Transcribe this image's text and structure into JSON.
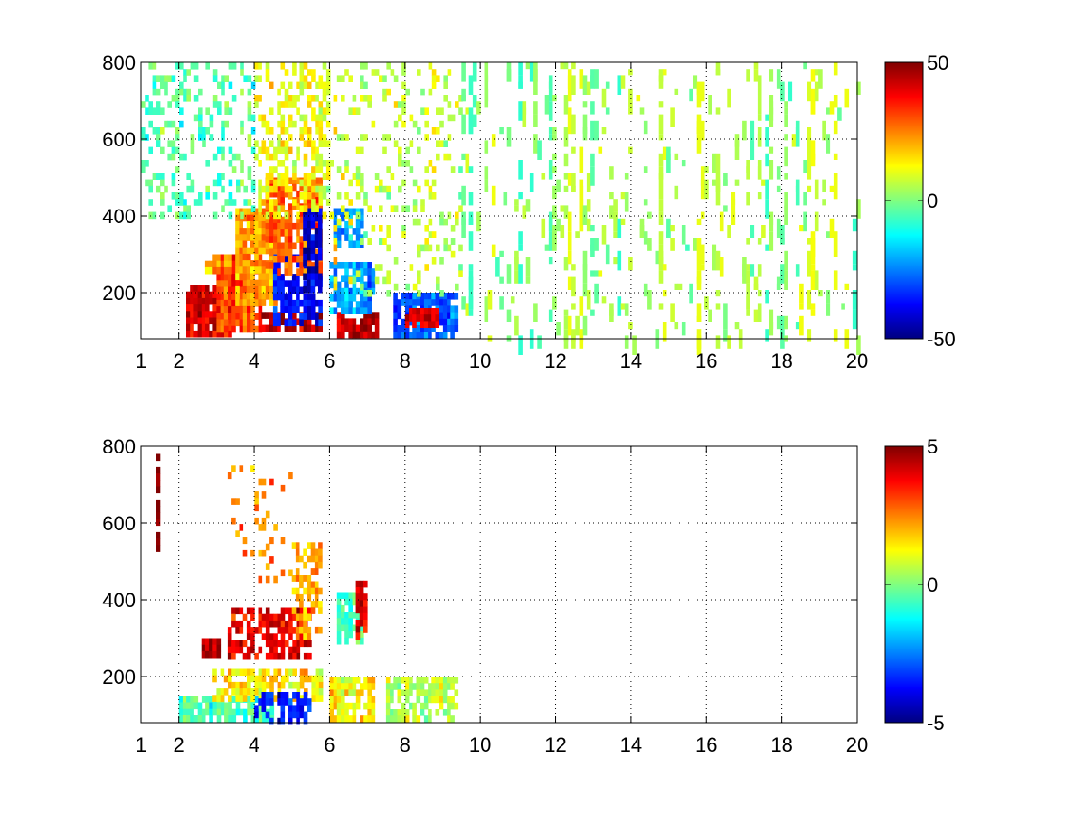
{
  "chart_data": [
    {
      "type": "heatmap",
      "title": "",
      "xlabel": "",
      "ylabel": "",
      "xlim": [
        1,
        20
      ],
      "ylim": [
        80,
        800
      ],
      "x_ticks": [
        1,
        2,
        4,
        6,
        8,
        10,
        12,
        14,
        16,
        18,
        20
      ],
      "x_tick_labels": [
        "1",
        "2",
        "4",
        "6",
        "8",
        "10",
        "12",
        "14",
        "16",
        "18",
        "20"
      ],
      "y_ticks": [
        200,
        400,
        600,
        800
      ],
      "y_tick_labels": [
        "200",
        "400",
        "600",
        "800"
      ],
      "x_grid": [
        2,
        4,
        6,
        8,
        10,
        12,
        14,
        16,
        18,
        20
      ],
      "y_grid": [
        200,
        400,
        600,
        800
      ],
      "grid": true,
      "colormap": "jet",
      "clim": [
        -50,
        50
      ],
      "colorbar_labels": [
        "50",
        "0",
        "-50"
      ],
      "colorbar_values": [
        50,
        0,
        -50
      ],
      "colorbar_placement": "right",
      "blobs": [
        {
          "x": [
            2.2,
            3.4
          ],
          "y": [
            100,
            220
          ],
          "v": 40,
          "density": 0.92
        },
        {
          "x": [
            3.0,
            4.2
          ],
          "y": [
            100,
            300
          ],
          "v": 32,
          "density": 0.92
        },
        {
          "x": [
            3.5,
            4.6
          ],
          "y": [
            180,
            420
          ],
          "v": 22,
          "density": 0.88
        },
        {
          "x": [
            4.2,
            5.8
          ],
          "y": [
            100,
            150
          ],
          "v": 45,
          "density": 0.92
        },
        {
          "x": [
            4.5,
            5.8
          ],
          "y": [
            120,
            300
          ],
          "v": -38,
          "density": 0.72
        },
        {
          "x": [
            4.3,
            5.8
          ],
          "y": [
            250,
            500
          ],
          "v": 28,
          "density": 0.82
        },
        {
          "x": [
            5.3,
            5.8
          ],
          "y": [
            200,
            420
          ],
          "v": -42,
          "density": 0.85
        },
        {
          "x": [
            4.0,
            6.0
          ],
          "y": [
            400,
            800
          ],
          "v": 12,
          "density": 0.45
        },
        {
          "x": [
            1.0,
            4.0
          ],
          "y": [
            400,
            800
          ],
          "v": -4,
          "density": 0.28
        },
        {
          "x": [
            2.7,
            3.4
          ],
          "y": [
            260,
            300
          ],
          "v": 25,
          "density": 0.9
        },
        {
          "x": [
            6.2,
            7.3
          ],
          "y": [
            90,
            150
          ],
          "v": 45,
          "density": 0.85
        },
        {
          "x": [
            6.0,
            7.2
          ],
          "y": [
            150,
            280
          ],
          "v": -22,
          "density": 0.75
        },
        {
          "x": [
            6.1,
            6.9
          ],
          "y": [
            320,
            420
          ],
          "v": -22,
          "density": 0.8
        },
        {
          "x": [
            7.7,
            9.4
          ],
          "y": [
            90,
            200
          ],
          "v": -28,
          "density": 0.8
        },
        {
          "x": [
            8.0,
            8.9
          ],
          "y": [
            110,
            160
          ],
          "v": 40,
          "density": 0.85
        },
        {
          "x": [
            6.0,
            9.5
          ],
          "y": [
            200,
            800
          ],
          "v": 6,
          "density": 0.18
        }
      ],
      "scatter_ranges": [
        {
          "x": [
            9.5,
            20
          ],
          "y": [
            80,
            800
          ],
          "v_min": -8,
          "v_max": 12,
          "density": 0.07
        }
      ]
    },
    {
      "type": "heatmap",
      "title": "",
      "xlabel": "",
      "ylabel": "",
      "xlim": [
        1,
        20
      ],
      "ylim": [
        80,
        800
      ],
      "x_ticks": [
        1,
        2,
        4,
        6,
        8,
        10,
        12,
        14,
        16,
        18,
        20
      ],
      "x_tick_labels": [
        "1",
        "2",
        "4",
        "6",
        "8",
        "10",
        "12",
        "14",
        "16",
        "18",
        "20"
      ],
      "y_ticks": [
        200,
        400,
        600,
        800
      ],
      "y_tick_labels": [
        "200",
        "400",
        "600",
        "800"
      ],
      "x_grid": [
        2,
        4,
        6,
        8,
        10,
        12,
        14,
        16,
        18,
        20
      ],
      "y_grid": [
        200,
        400,
        600,
        800
      ],
      "grid": true,
      "colormap": "jet",
      "clim": [
        -5,
        5
      ],
      "colorbar_labels": [
        "5",
        "0",
        "-5"
      ],
      "colorbar_values": [
        5,
        0,
        -5
      ],
      "colorbar_placement": "right",
      "blobs": [
        {
          "x": [
            2.0,
            4.5
          ],
          "y": [
            85,
            150
          ],
          "v": -0.5,
          "density": 0.85
        },
        {
          "x": [
            2.9,
            5.8
          ],
          "y": [
            150,
            220
          ],
          "v": 1.5,
          "density": 0.7
        },
        {
          "x": [
            3.3,
            5.5
          ],
          "y": [
            250,
            380
          ],
          "v": 4.0,
          "density": 0.62
        },
        {
          "x": [
            2.6,
            3.1
          ],
          "y": [
            260,
            300
          ],
          "v": 4.5,
          "density": 0.9
        },
        {
          "x": [
            4.0,
            5.5
          ],
          "y": [
            90,
            160
          ],
          "v": -3.5,
          "density": 0.55
        },
        {
          "x": [
            5.0,
            5.8
          ],
          "y": [
            300,
            550
          ],
          "v": 2.0,
          "density": 0.55
        },
        {
          "x": [
            6.0,
            7.2
          ],
          "y": [
            90,
            200
          ],
          "v": 1.5,
          "density": 0.75
        },
        {
          "x": [
            6.2,
            6.9
          ],
          "y": [
            300,
            420
          ],
          "v": -0.5,
          "density": 0.7
        },
        {
          "x": [
            6.7,
            7.0
          ],
          "y": [
            300,
            450
          ],
          "v": 4.0,
          "density": 0.8
        },
        {
          "x": [
            7.5,
            9.4
          ],
          "y": [
            90,
            200
          ],
          "v": 0.5,
          "density": 0.7
        },
        {
          "x": [
            3.2,
            5.0
          ],
          "y": [
            450,
            750
          ],
          "v": 2.5,
          "density": 0.14
        },
        {
          "x": [
            1.4,
            1.5
          ],
          "y": [
            540,
            780
          ],
          "v": 5.0,
          "density": 0.6
        }
      ],
      "scatter_ranges": []
    }
  ]
}
